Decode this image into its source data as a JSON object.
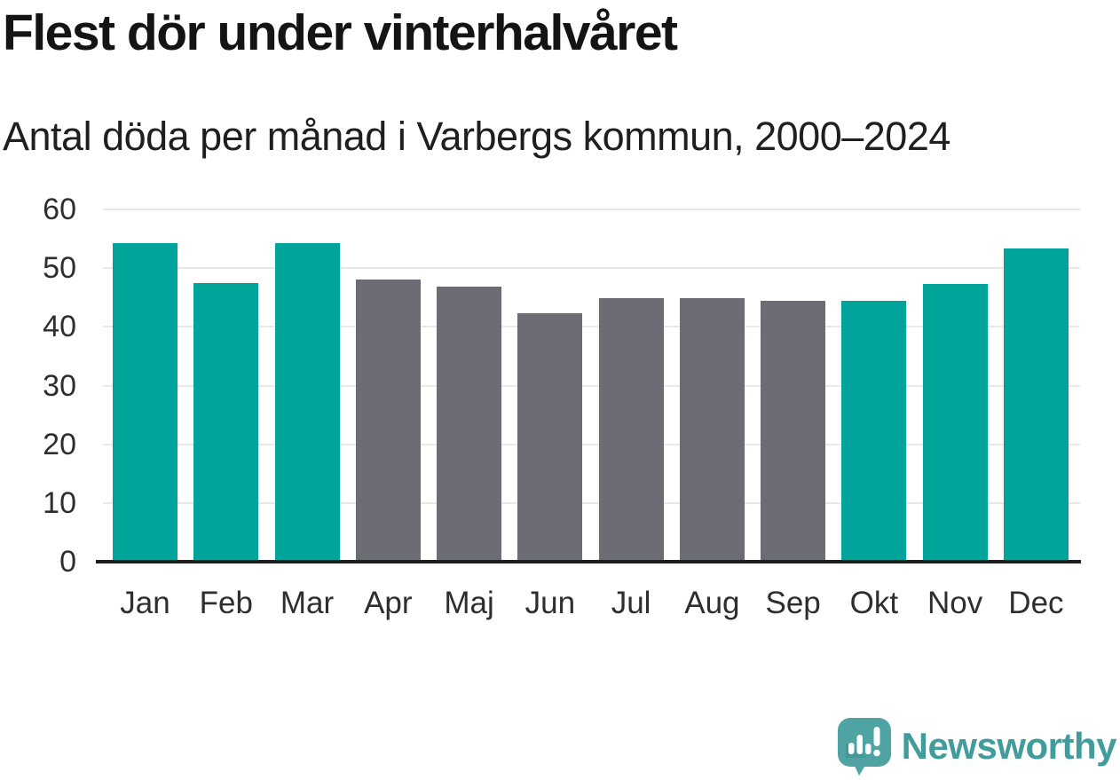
{
  "header": {
    "title": "Flest dör under vinterhalvåret",
    "subtitle": "Antal döda per månad i Varbergs kommun, 2000–2024"
  },
  "chart_data": {
    "type": "bar",
    "title": "Flest dör under vinterhalvåret",
    "subtitle": "Antal döda per månad i Varbergs kommun, 2000–2024",
    "categories": [
      "Jan",
      "Feb",
      "Mar",
      "Apr",
      "Maj",
      "Jun",
      "Jul",
      "Aug",
      "Sep",
      "Okt",
      "Nov",
      "Dec"
    ],
    "values": [
      54.2,
      47.5,
      54.2,
      48.1,
      46.8,
      42.3,
      44.9,
      44.9,
      44.4,
      44.4,
      47.3,
      53.4
    ],
    "bar_colors": [
      "#00a49b",
      "#00a49b",
      "#00a49b",
      "#6c6c74",
      "#6c6c74",
      "#6c6c74",
      "#6c6c74",
      "#6c6c74",
      "#6c6c74",
      "#00a49b",
      "#00a49b",
      "#00a49b"
    ],
    "winter_color": "#00a49b",
    "summer_color": "#6c6c74",
    "xlabel": "",
    "ylabel": "",
    "ylim": [
      0,
      60
    ],
    "yticks": [
      0,
      10,
      20,
      30,
      40,
      50,
      60
    ],
    "grid": "horizontal-only",
    "legend": "none"
  },
  "footer": {
    "brand": "Newsworthy",
    "brand_color": "#429c9c",
    "logo_bubble_color": "#4fa3a2",
    "logo_icon": "newsworthy-speech-bubble-bar-chart-icon"
  }
}
